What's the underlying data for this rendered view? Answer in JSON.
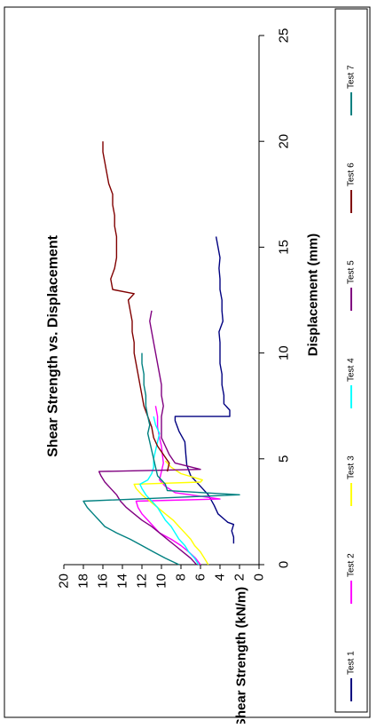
{
  "chart_data": {
    "type": "line",
    "title": "Shear Strength vs. Displacement",
    "xlabel": "Displacement (mm)",
    "ylabel": "Shear Strength (kN/m)",
    "xlim": [
      0,
      25
    ],
    "ylim": [
      0,
      20
    ],
    "x_ticks": [
      "0",
      "5",
      "10",
      "15",
      "20",
      "25"
    ],
    "y_ticks": [
      "0",
      "2",
      "4",
      "6",
      "8",
      "10",
      "12",
      "14",
      "16",
      "18",
      "20"
    ],
    "grid": false,
    "legend_position": "bottom",
    "series": [
      {
        "name": "Test 1",
        "color": "#000080",
        "points": [
          [
            1.0,
            2.6
          ],
          [
            1.3,
            2.6
          ],
          [
            1.6,
            2.8
          ],
          [
            1.9,
            2.6
          ],
          [
            2.0,
            3.2
          ],
          [
            2.4,
            4.2
          ],
          [
            2.8,
            4.6
          ],
          [
            3.3,
            5.2
          ],
          [
            3.7,
            6.0
          ],
          [
            4.2,
            7.0
          ],
          [
            4.7,
            7.4
          ],
          [
            5.2,
            7.5
          ],
          [
            5.8,
            7.6
          ],
          [
            6.3,
            8.2
          ],
          [
            6.8,
            8.6
          ],
          [
            7.0,
            8.6
          ],
          [
            7.0,
            3.0
          ],
          [
            7.3,
            3.0
          ],
          [
            7.6,
            3.6
          ],
          [
            8.0,
            3.6
          ],
          [
            8.5,
            3.8
          ],
          [
            9.0,
            3.8
          ],
          [
            9.5,
            4.0
          ],
          [
            10.0,
            4.0
          ],
          [
            10.5,
            4.0
          ],
          [
            11.0,
            4.1
          ],
          [
            11.5,
            3.7
          ],
          [
            12.0,
            3.8
          ],
          [
            12.5,
            3.8
          ],
          [
            13.0,
            4.0
          ],
          [
            13.5,
            4.0
          ],
          [
            14.0,
            4.1
          ],
          [
            14.5,
            4.0
          ],
          [
            15.0,
            4.2
          ],
          [
            15.5,
            4.4
          ]
        ]
      },
      {
        "name": "Test 2",
        "color": "#ff00ff",
        "points": [
          [
            0.0,
            6.0
          ],
          [
            0.3,
            6.5
          ],
          [
            0.6,
            7.2
          ],
          [
            0.9,
            8.0
          ],
          [
            1.2,
            9.0
          ],
          [
            1.5,
            10.2
          ],
          [
            1.8,
            10.8
          ],
          [
            2.1,
            11.4
          ],
          [
            2.4,
            12.0
          ],
          [
            2.7,
            12.4
          ],
          [
            3.0,
            12.6
          ],
          [
            3.1,
            4.0
          ],
          [
            3.4,
            8.6
          ],
          [
            3.7,
            9.6
          ],
          [
            4.0,
            10.2
          ],
          [
            4.4,
            10.0
          ],
          [
            4.8,
            9.8
          ],
          [
            5.2,
            9.9
          ],
          [
            5.6,
            10.0
          ],
          [
            6.0,
            10.2
          ],
          [
            6.5,
            10.4
          ],
          [
            7.0,
            10.4
          ],
          [
            7.5,
            10.6
          ]
        ]
      },
      {
        "name": "Test 3",
        "color": "#ffff00",
        "points": [
          [
            0.0,
            5.2
          ],
          [
            0.3,
            5.6
          ],
          [
            0.6,
            6.0
          ],
          [
            0.9,
            6.6
          ],
          [
            1.2,
            7.0
          ],
          [
            1.5,
            7.6
          ],
          [
            1.8,
            8.2
          ],
          [
            2.1,
            8.8
          ],
          [
            2.4,
            9.6
          ],
          [
            2.7,
            10.4
          ],
          [
            3.0,
            11.2
          ],
          [
            3.3,
            12.0
          ],
          [
            3.6,
            12.6
          ],
          [
            3.8,
            12.8
          ],
          [
            3.9,
            6.0
          ],
          [
            4.0,
            5.8
          ],
          [
            4.3,
            8.0
          ],
          [
            4.6,
            9.0
          ],
          [
            4.9,
            9.6
          ]
        ]
      },
      {
        "name": "Test 4",
        "color": "#00ffff",
        "points": [
          [
            0.0,
            6.2
          ],
          [
            0.3,
            6.6
          ],
          [
            0.6,
            7.2
          ],
          [
            0.9,
            7.6
          ],
          [
            1.2,
            8.2
          ],
          [
            1.5,
            8.6
          ],
          [
            1.8,
            9.0
          ],
          [
            2.1,
            9.6
          ],
          [
            2.4,
            10.0
          ],
          [
            2.7,
            10.4
          ],
          [
            3.0,
            11.0
          ],
          [
            3.3,
            11.6
          ],
          [
            3.6,
            12.0
          ],
          [
            3.8,
            12.2
          ],
          [
            4.0,
            11.4
          ],
          [
            4.3,
            11.0
          ],
          [
            4.6,
            10.8
          ],
          [
            5.0,
            10.8
          ],
          [
            5.4,
            10.6
          ],
          [
            5.8,
            10.4
          ],
          [
            6.2,
            10.2
          ],
          [
            6.6,
            10.6
          ],
          [
            7.0,
            10.8
          ]
        ]
      },
      {
        "name": "Test 5",
        "color": "#800080",
        "points": [
          [
            0.0,
            6.4
          ],
          [
            0.3,
            7.0
          ],
          [
            0.6,
            7.8
          ],
          [
            0.9,
            8.6
          ],
          [
            1.2,
            9.4
          ],
          [
            1.5,
            10.2
          ],
          [
            1.8,
            11.0
          ],
          [
            2.1,
            12.0
          ],
          [
            2.4,
            12.8
          ],
          [
            2.7,
            13.6
          ],
          [
            3.0,
            14.2
          ],
          [
            3.3,
            14.6
          ],
          [
            3.6,
            15.2
          ],
          [
            3.9,
            15.8
          ],
          [
            4.2,
            16.2
          ],
          [
            4.4,
            16.4
          ],
          [
            4.5,
            6.0
          ],
          [
            4.8,
            8.6
          ],
          [
            5.2,
            9.2
          ],
          [
            5.6,
            9.6
          ],
          [
            6.0,
            10.0
          ],
          [
            6.5,
            10.0
          ],
          [
            7.0,
            10.0
          ],
          [
            7.5,
            9.8
          ],
          [
            8.0,
            10.0
          ],
          [
            8.5,
            10.0
          ],
          [
            9.0,
            10.2
          ],
          [
            9.5,
            10.4
          ],
          [
            10.0,
            10.6
          ],
          [
            10.5,
            10.8
          ],
          [
            11.0,
            11.0
          ],
          [
            11.5,
            11.2
          ],
          [
            12.0,
            11.0
          ]
        ]
      },
      {
        "name": "Test 6",
        "color": "#800000",
        "points": [
          [
            4.4,
            9.4
          ],
          [
            4.8,
            9.2
          ],
          [
            5.2,
            9.8
          ],
          [
            5.6,
            10.4
          ],
          [
            6.0,
            10.8
          ],
          [
            6.5,
            11.0
          ],
          [
            7.0,
            11.4
          ],
          [
            7.5,
            11.8
          ],
          [
            8.0,
            12.0
          ],
          [
            8.5,
            12.2
          ],
          [
            9.0,
            12.4
          ],
          [
            9.5,
            12.6
          ],
          [
            10.0,
            12.8
          ],
          [
            10.5,
            12.8
          ],
          [
            11.0,
            13.0
          ],
          [
            11.5,
            13.0
          ],
          [
            12.0,
            13.2
          ],
          [
            12.5,
            13.4
          ],
          [
            12.8,
            12.8
          ],
          [
            13.0,
            15.0
          ],
          [
            13.5,
            15.2
          ],
          [
            14.0,
            14.8
          ],
          [
            14.5,
            14.6
          ],
          [
            15.0,
            14.6
          ],
          [
            15.5,
            14.6
          ],
          [
            16.0,
            14.8
          ],
          [
            16.5,
            14.8
          ],
          [
            17.0,
            15.0
          ],
          [
            17.5,
            15.0
          ],
          [
            18.0,
            15.4
          ],
          [
            18.5,
            15.6
          ],
          [
            19.0,
            15.8
          ],
          [
            19.5,
            16.0
          ],
          [
            20.0,
            16.0
          ]
        ]
      },
      {
        "name": "Test 7",
        "color": "#008080",
        "points": [
          [
            0.0,
            8.2
          ],
          [
            0.3,
            9.6
          ],
          [
            0.6,
            10.8
          ],
          [
            0.9,
            12.0
          ],
          [
            1.2,
            13.2
          ],
          [
            1.5,
            14.6
          ],
          [
            1.8,
            15.8
          ],
          [
            2.1,
            16.4
          ],
          [
            2.4,
            17.0
          ],
          [
            2.7,
            17.6
          ],
          [
            3.0,
            18.0
          ],
          [
            3.3,
            2.0
          ],
          [
            3.5,
            9.4
          ],
          [
            3.8,
            9.6
          ],
          [
            4.2,
            10.4
          ],
          [
            4.6,
            10.6
          ],
          [
            5.0,
            10.8
          ],
          [
            5.4,
            11.0
          ],
          [
            5.8,
            11.2
          ],
          [
            6.2,
            11.4
          ],
          [
            6.6,
            11.2
          ],
          [
            7.0,
            11.4
          ],
          [
            7.5,
            11.6
          ],
          [
            8.0,
            11.6
          ],
          [
            8.5,
            11.8
          ],
          [
            9.0,
            11.8
          ],
          [
            9.5,
            12.0
          ],
          [
            10.0,
            12.0
          ]
        ]
      }
    ]
  }
}
